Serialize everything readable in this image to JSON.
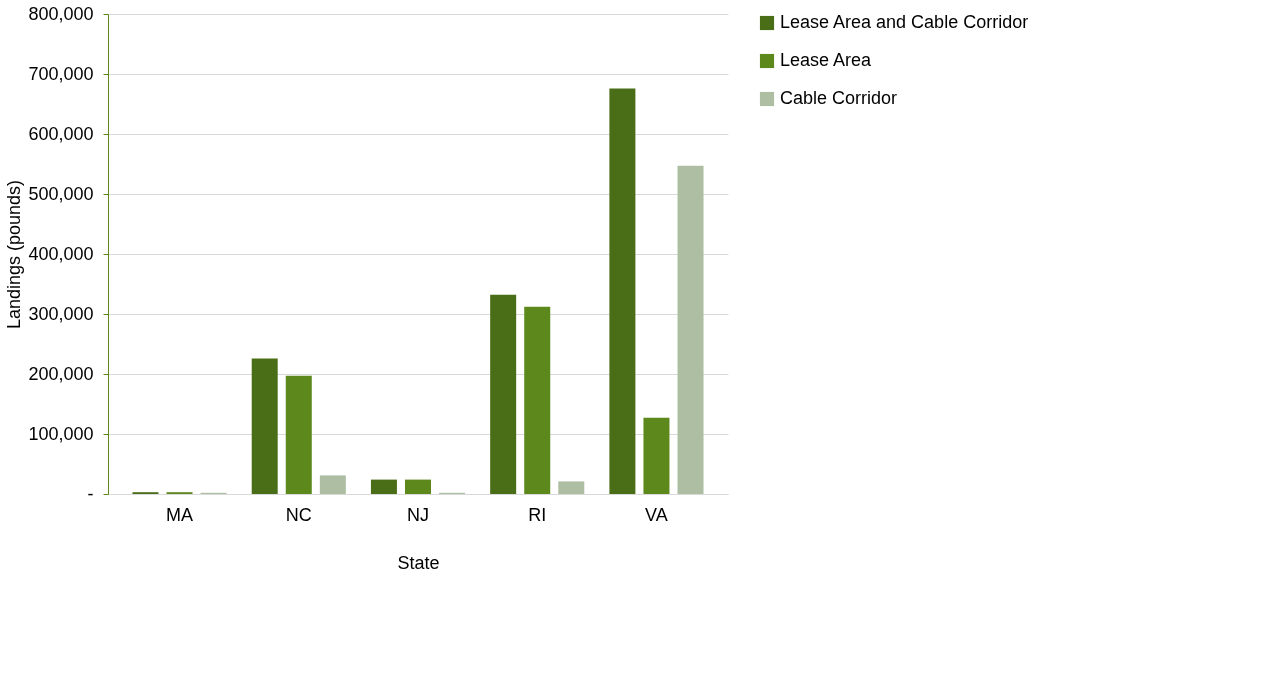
{
  "chart_data": {
    "type": "bar",
    "xlabel": "State",
    "ylabel": "Landings  (pounds)",
    "categories": [
      "MA",
      "NC",
      "NJ",
      "RI",
      "VA"
    ],
    "series": [
      {
        "name": "Lease Area and Cable Corridor",
        "color": "#4a6e17",
        "values": [
          3000,
          226000,
          24000,
          332000,
          676000
        ]
      },
      {
        "name": "Lease Area",
        "color": "#5c881c",
        "values": [
          3000,
          197000,
          24000,
          312000,
          127000
        ]
      },
      {
        "name": "Cable Corridor",
        "color": "#adbea3",
        "values": [
          2000,
          31000,
          2000,
          21000,
          547000
        ]
      }
    ],
    "ylim": [
      0,
      800000
    ],
    "yticks": [
      {
        "value": 0,
        "label": "-"
      },
      {
        "value": 100000,
        "label": "100,000"
      },
      {
        "value": 200000,
        "label": "200,000"
      },
      {
        "value": 300000,
        "label": "300,000"
      },
      {
        "value": 400000,
        "label": "400,000"
      },
      {
        "value": 500000,
        "label": "500,000"
      },
      {
        "value": 600000,
        "label": "600,000"
      },
      {
        "value": 700000,
        "label": "700,000"
      },
      {
        "value": 800000,
        "label": "800,000"
      }
    ],
    "grid": "y",
    "legend": "right"
  }
}
